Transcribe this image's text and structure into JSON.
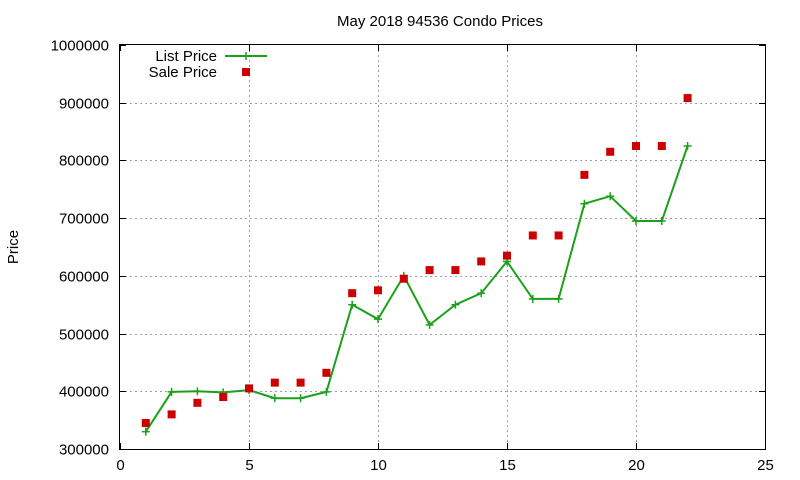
{
  "chart_data": {
    "type": "line",
    "title": "May 2018 94536 Condo Prices",
    "xlabel": "",
    "ylabel": "Price",
    "xlim": [
      0,
      25
    ],
    "ylim": [
      300000,
      1000000
    ],
    "x_ticks": [
      "0",
      "5",
      "10",
      "15",
      "20",
      "25"
    ],
    "y_ticks": [
      "300000",
      "400000",
      "500000",
      "600000",
      "700000",
      "800000",
      "900000",
      "1000000"
    ],
    "grid": true,
    "legend_position": "top-left",
    "series": [
      {
        "name": "List Price",
        "style": "line-with-plus-markers",
        "color": "#1aa01a",
        "x": [
          1,
          2,
          3,
          4,
          5,
          6,
          7,
          8,
          9,
          10,
          11,
          12,
          13,
          14,
          15,
          16,
          17,
          18,
          19,
          20,
          21,
          22
        ],
        "y": [
          330000,
          399000,
          400000,
          398000,
          402000,
          388000,
          388000,
          399000,
          550000,
          525000,
          600000,
          515000,
          550000,
          570000,
          625000,
          560000,
          560000,
          725000,
          738000,
          695000,
          695000,
          825000
        ]
      },
      {
        "name": "Sale Price",
        "style": "square-points",
        "color": "#cc0000",
        "x": [
          1,
          2,
          3,
          4,
          5,
          6,
          7,
          8,
          9,
          10,
          11,
          12,
          13,
          14,
          15,
          16,
          17,
          18,
          19,
          20,
          21,
          22
        ],
        "y": [
          345000,
          360000,
          380000,
          390000,
          405000,
          415000,
          415000,
          432000,
          570000,
          575000,
          595000,
          610000,
          610000,
          625000,
          635000,
          670000,
          670000,
          775000,
          815000,
          825000,
          825000,
          908000
        ]
      }
    ]
  }
}
